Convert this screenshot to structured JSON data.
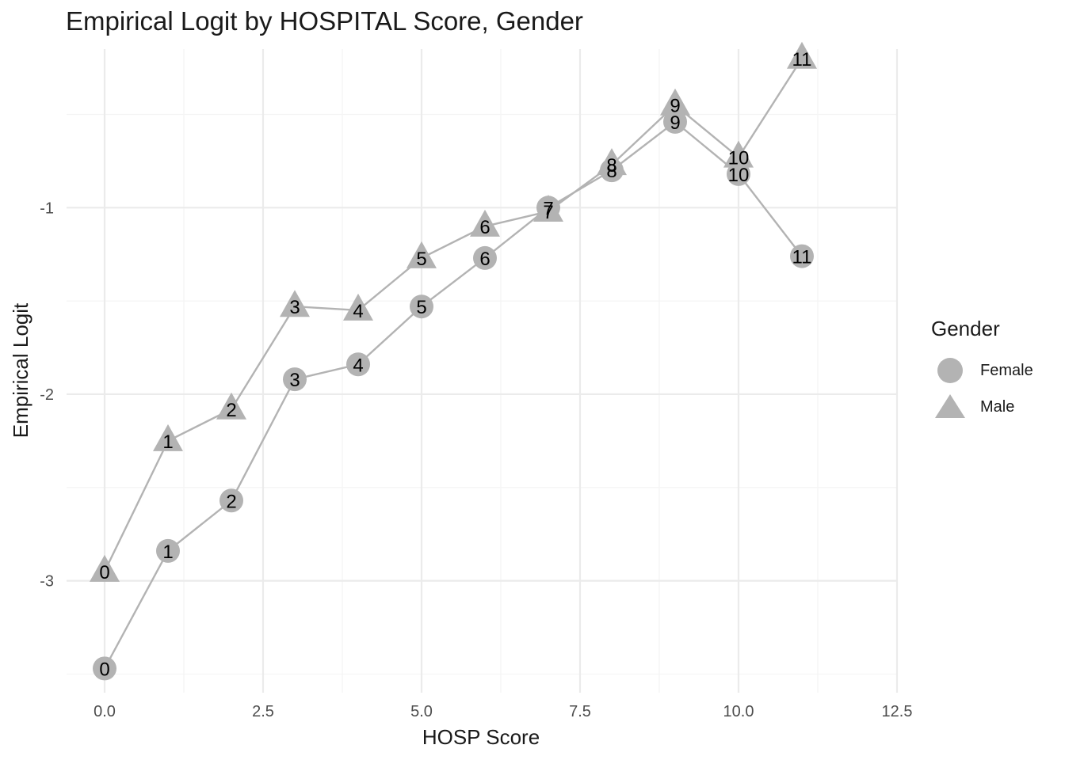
{
  "chart_data": {
    "type": "scatter",
    "title": "Empirical Logit by HOSPITAL Score, Gender",
    "xlabel": "HOSP Score",
    "ylabel": "Empirical Logit",
    "xlim": [
      -0.6,
      12.5
    ],
    "ylim": [
      -3.6,
      -0.15
    ],
    "xticks": [
      0.0,
      2.5,
      5.0,
      7.5,
      10.0,
      12.5
    ],
    "xtick_labels": [
      "0.0",
      "2.5",
      "5.0",
      "7.5",
      "10.0",
      "12.5"
    ],
    "yticks": [
      -3,
      -2,
      -1
    ],
    "ytick_labels": [
      "-3",
      "-2",
      "-1"
    ],
    "grid": true,
    "legend": {
      "title": "Gender",
      "position": "right",
      "entries": [
        {
          "label": "Female",
          "shape": "circle"
        },
        {
          "label": "Male",
          "shape": "triangle"
        }
      ]
    },
    "series": [
      {
        "name": "Female",
        "shape": "circle",
        "x": [
          0,
          1,
          2,
          3,
          4,
          5,
          6,
          7,
          8,
          9,
          10,
          11
        ],
        "y": [
          -3.47,
          -2.84,
          -2.57,
          -1.92,
          -1.84,
          -1.53,
          -1.27,
          -1.0,
          -0.8,
          -0.54,
          -0.82,
          -1.26
        ],
        "labels": [
          "0",
          "1",
          "2",
          "3",
          "4",
          "5",
          "6",
          "7",
          "8",
          "9",
          "10",
          "11"
        ]
      },
      {
        "name": "Male",
        "shape": "triangle",
        "x": [
          0,
          1,
          2,
          3,
          4,
          5,
          6,
          7,
          8,
          9,
          10,
          11
        ],
        "y": [
          -2.95,
          -2.25,
          -2.08,
          -1.53,
          -1.55,
          -1.27,
          -1.1,
          -1.02,
          -0.77,
          -0.45,
          -0.73,
          -0.2
        ],
        "labels": [
          "0",
          "1",
          "2",
          "3",
          "4",
          "5",
          "6",
          "7",
          "8",
          "9",
          "10",
          "11"
        ]
      }
    ],
    "colors": {
      "marker": "#b3b3b3",
      "line": "#b3b3b3",
      "grid_major": "#ebebeb",
      "grid_minor": "#f4f4f4"
    }
  }
}
